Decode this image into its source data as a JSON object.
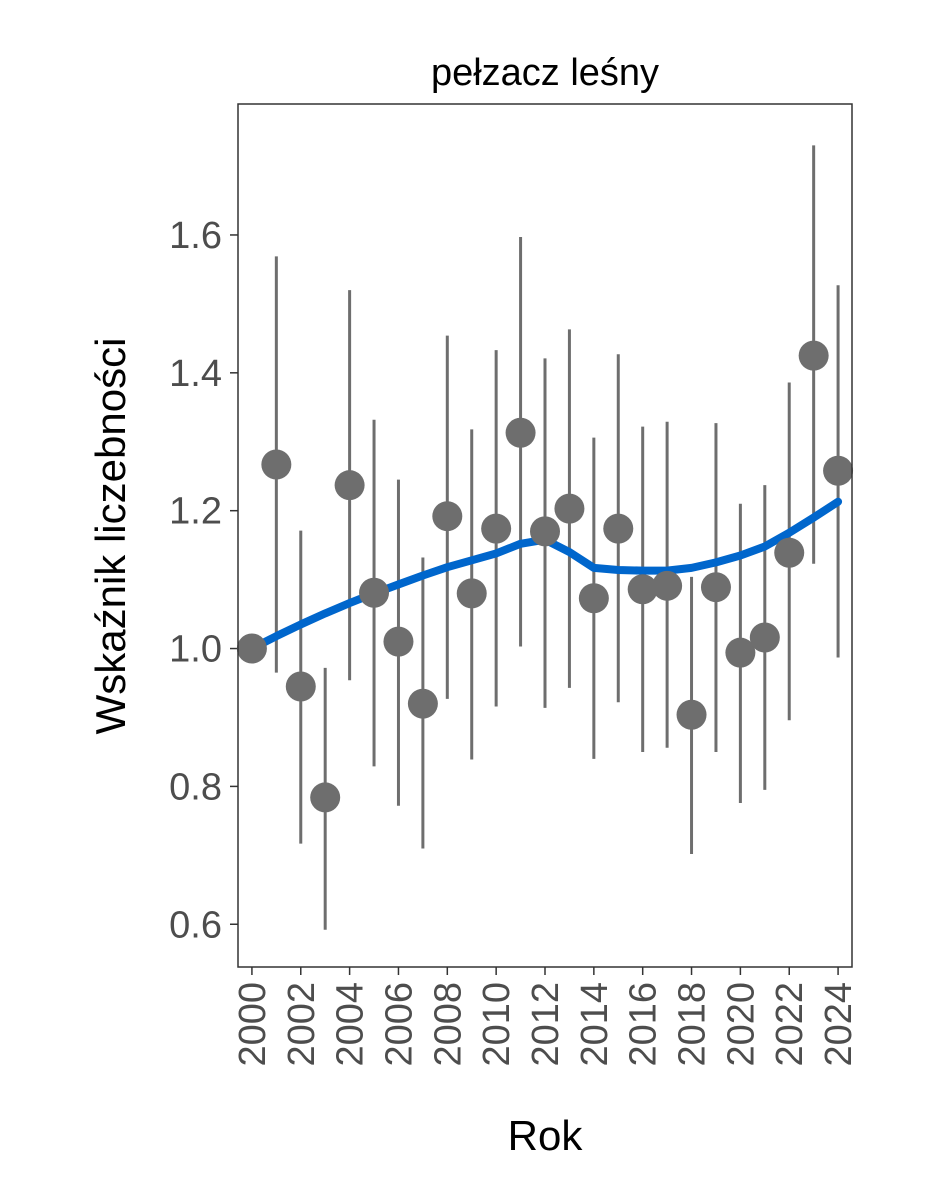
{
  "chart_data": {
    "type": "scatter",
    "title": "pełzacz leśny",
    "xlabel": "Rok",
    "ylabel": "Wskaźnik liczebności",
    "xlim": [
      1999.43,
      2024.57
    ],
    "ylim": [
      0.538,
      1.79
    ],
    "grid": false,
    "x_ticks": [
      2000,
      2002,
      2004,
      2006,
      2008,
      2010,
      2012,
      2014,
      2016,
      2018,
      2020,
      2022,
      2024
    ],
    "y_ticks": [
      0.6,
      0.8,
      1.0,
      1.2,
      1.4,
      1.6
    ],
    "y_tick_labels": [
      "0.6",
      "0.8",
      "1.0",
      "1.2",
      "1.4",
      "1.6"
    ],
    "point_color": "#6e6e6e",
    "trend_color": "#0066cc",
    "series": [
      {
        "name": "index",
        "x": [
          2000,
          2001,
          2002,
          2003,
          2004,
          2005,
          2006,
          2007,
          2008,
          2009,
          2010,
          2011,
          2012,
          2013,
          2014,
          2015,
          2016,
          2017,
          2018,
          2019,
          2020,
          2021,
          2022,
          2023,
          2024
        ],
        "y": [
          1.0,
          1.267,
          0.945,
          0.784,
          1.237,
          1.081,
          1.01,
          0.92,
          1.192,
          1.08,
          1.174,
          1.313,
          1.17,
          1.203,
          1.073,
          1.174,
          1.086,
          1.091,
          0.904,
          1.089,
          0.994,
          1.016,
          1.139,
          1.425,
          1.258
        ],
        "lower": [
          1.0,
          0.965,
          0.717,
          0.592,
          0.954,
          0.829,
          0.772,
          0.71,
          0.927,
          0.839,
          0.916,
          1.003,
          0.914,
          0.943,
          0.84,
          0.922,
          0.85,
          0.856,
          0.702,
          0.85,
          0.776,
          0.795,
          0.896,
          1.123,
          0.987
        ],
        "upper": [
          1.0,
          1.569,
          1.171,
          0.972,
          1.52,
          1.332,
          1.245,
          1.132,
          1.454,
          1.318,
          1.433,
          1.597,
          1.421,
          1.463,
          1.306,
          1.427,
          1.322,
          1.329,
          1.104,
          1.327,
          1.21,
          1.237,
          1.386,
          1.73,
          1.527
        ]
      },
      {
        "name": "trend",
        "x": [
          2000,
          2001,
          2002,
          2003,
          2004,
          2005,
          2006,
          2007,
          2008,
          2009,
          2010,
          2011,
          2012,
          2013,
          2014,
          2015,
          2016,
          2017,
          2018,
          2019,
          2020,
          2021,
          2022,
          2023,
          2024
        ],
        "y": [
          1.0,
          1.018,
          1.035,
          1.051,
          1.066,
          1.08,
          1.093,
          1.106,
          1.118,
          1.128,
          1.138,
          1.152,
          1.158,
          1.14,
          1.117,
          1.114,
          1.113,
          1.113,
          1.117,
          1.125,
          1.135,
          1.148,
          1.168,
          1.19,
          1.213
        ]
      }
    ]
  }
}
